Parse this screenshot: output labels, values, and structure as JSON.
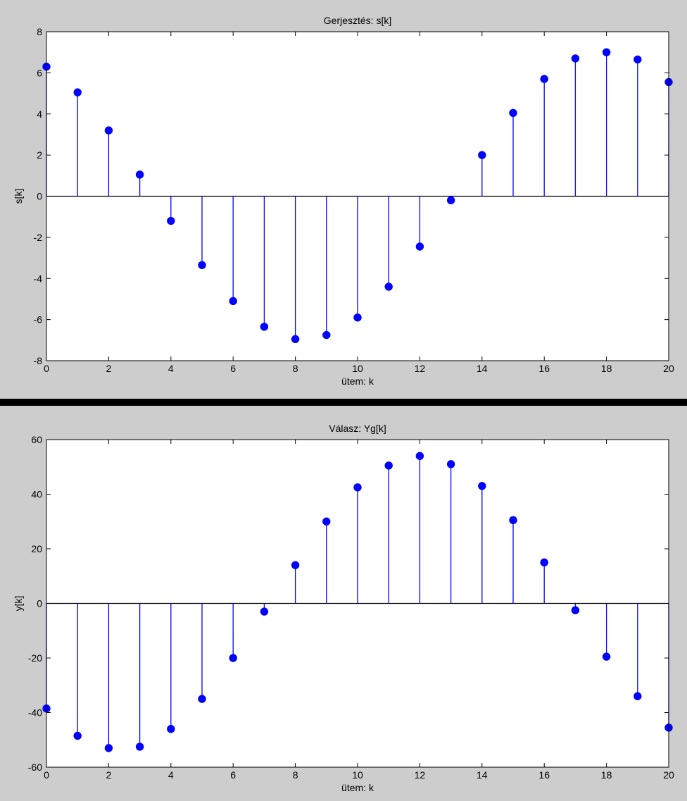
{
  "chart_data": [
    {
      "type": "stem",
      "title": "Gerjesztés: s[k]",
      "xlabel": "ütem: k",
      "ylabel": "s[k]",
      "xlim": [
        0,
        20
      ],
      "ylim": [
        -8,
        8
      ],
      "xticks": [
        0,
        2,
        4,
        6,
        8,
        10,
        12,
        14,
        16,
        18,
        20
      ],
      "yticks": [
        -8,
        -6,
        -4,
        -2,
        0,
        2,
        4,
        6,
        8
      ],
      "x": [
        0,
        1,
        2,
        3,
        4,
        5,
        6,
        7,
        8,
        9,
        10,
        11,
        12,
        13,
        14,
        15,
        16,
        17,
        18,
        19,
        20
      ],
      "values": [
        6.3,
        5.05,
        3.2,
        1.05,
        -1.2,
        -3.35,
        -5.1,
        -6.35,
        -6.95,
        -6.75,
        -5.9,
        -4.4,
        -2.45,
        -0.2,
        2.0,
        4.05,
        5.7,
        6.7,
        7.0,
        6.65,
        5.55
      ],
      "color": "#0000ff",
      "grid": false
    },
    {
      "type": "stem",
      "title": "Válasz: Yg[k]",
      "xlabel": "ütem: k",
      "ylabel": "y[k]",
      "xlim": [
        0,
        20
      ],
      "ylim": [
        -60,
        60
      ],
      "xticks": [
        0,
        2,
        4,
        6,
        8,
        10,
        12,
        14,
        16,
        18,
        20
      ],
      "yticks": [
        -60,
        -40,
        -20,
        0,
        20,
        40,
        60
      ],
      "x": [
        0,
        1,
        2,
        3,
        4,
        5,
        6,
        7,
        8,
        9,
        10,
        11,
        12,
        13,
        14,
        15,
        16,
        17,
        18,
        19,
        20
      ],
      "values": [
        -38.5,
        -48.5,
        -53,
        -52.5,
        -46,
        -35,
        -20,
        -3,
        14,
        30,
        42.5,
        50.5,
        54,
        51,
        43,
        30.5,
        15,
        -2.5,
        -19.5,
        -34,
        -45.5
      ],
      "color": "#0000ff",
      "grid": false
    }
  ]
}
